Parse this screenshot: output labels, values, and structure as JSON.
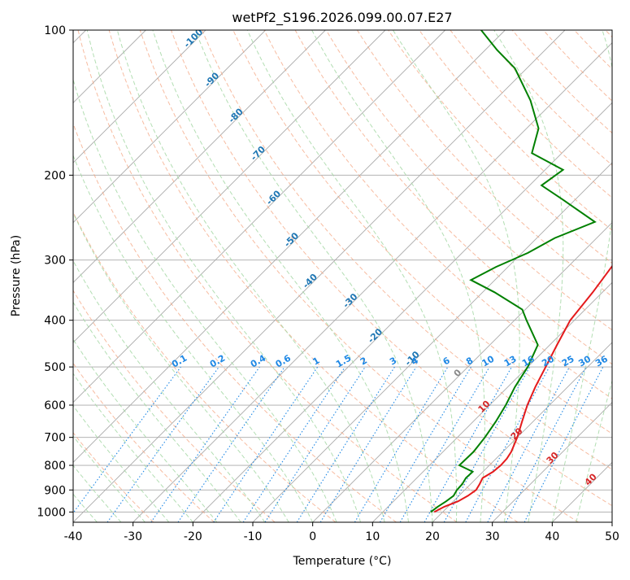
{
  "chart_data": {
    "type": "line",
    "title": "wetPf2_S196.2026.099.00.07.E27",
    "xlabel": "Temperature (°C)",
    "ylabel": "Pressure (hPa)",
    "xlim": [
      -40,
      50
    ],
    "ylim": [
      1050,
      100
    ],
    "y_scale": "log",
    "grid": true,
    "x_ticks": [
      -40,
      -30,
      -20,
      -10,
      0,
      10,
      20,
      30,
      40,
      50
    ],
    "y_ticks": [
      100,
      200,
      300,
      400,
      500,
      600,
      700,
      800,
      900,
      1000
    ],
    "skew": "45-degree isotherms",
    "colors": {
      "temperature": "#e41a1c",
      "dewpoint": "#008000",
      "isotherm": "#aaaaaa",
      "dry_adiabat": "#f4a582",
      "moist_adiabat": "#a6d8a6",
      "mixing_ratio": "#1e88e5",
      "isotherm_label": "#1f77b4",
      "adiabat_label": "#d62728",
      "theta_label_zero": "#888888"
    },
    "isotherm_labels": [
      -100,
      -90,
      -80,
      -70,
      -60,
      -50,
      -40,
      -30,
      -20,
      -10
    ],
    "mixing_ratio_labels": [
      "0.1",
      "0.2",
      "0.4",
      "0.6",
      "1",
      "1.5",
      "2",
      "3",
      "4",
      "6",
      "8",
      "10",
      "13",
      "16",
      "20",
      "25",
      "30",
      "36"
    ],
    "mixing_ratio_values": [
      0.1,
      0.2,
      0.4,
      0.6,
      1,
      1.5,
      2,
      3,
      4,
      6,
      8,
      10,
      13,
      16,
      20,
      25,
      30,
      36
    ],
    "dry_adiabat_labels": [
      "0",
      "10",
      "20",
      "30",
      "40"
    ],
    "series": [
      {
        "name": "Temperature",
        "p": [
          1000,
          975,
          950,
          925,
          900,
          875,
          850,
          825,
          800,
          775,
          750,
          700,
          650,
          600,
          550,
          500,
          450,
          400,
          350,
          300,
          275,
          250,
          225,
          200,
          185,
          170,
          150,
          125,
          110,
          100
        ],
        "t": [
          18.6,
          19.4,
          20.8,
          21.5,
          21.9,
          21.5,
          21.0,
          21.7,
          21.9,
          21.8,
          21.4,
          20.0,
          18.2,
          16.3,
          14.6,
          13.0,
          11.2,
          9.3,
          8.4,
          7.0,
          6.0,
          4.0,
          2.0,
          -0.4,
          -2.0,
          -4.0,
          -8.0,
          -12.0,
          -15.0,
          -18.0
        ]
      },
      {
        "name": "Dewpoint",
        "p": [
          1000,
          975,
          950,
          925,
          900,
          875,
          850,
          825,
          800,
          750,
          700,
          650,
          600,
          550,
          500,
          450,
          400,
          380,
          350,
          330,
          310,
          290,
          270,
          250,
          225,
          210,
          195,
          180,
          160,
          140,
          120,
          110,
          100
        ],
        "td": [
          18.0,
          18.3,
          18.8,
          19.1,
          18.7,
          18.6,
          18.2,
          18.3,
          15.0,
          15.1,
          14.6,
          13.8,
          12.7,
          11.2,
          10.0,
          8.0,
          2.0,
          -0.5,
          -8.0,
          -14.0,
          -12.0,
          -9.0,
          -7.0,
          -3.0,
          -12.0,
          -18.0,
          -17.0,
          -25.0,
          -28.0,
          -34.0,
          -42.0,
          -48.0,
          -54.0
        ]
      }
    ]
  }
}
